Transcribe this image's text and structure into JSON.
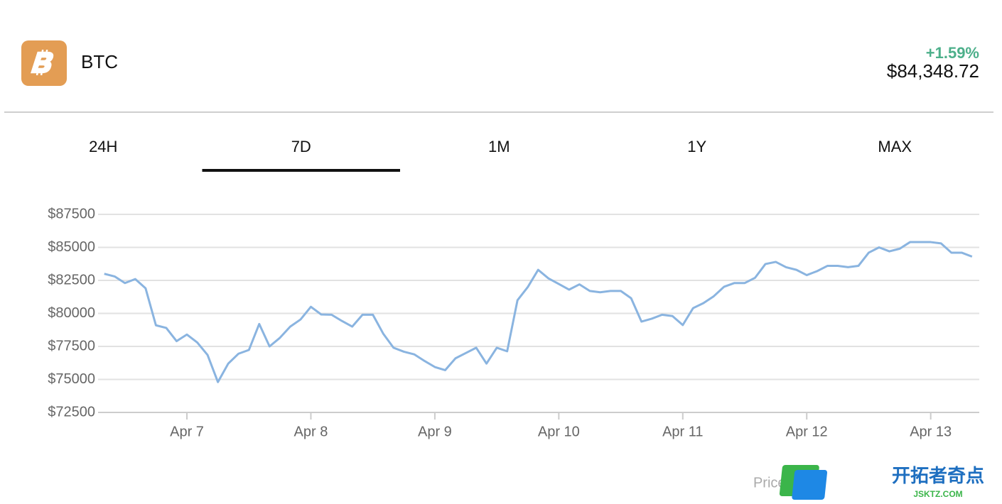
{
  "header": {
    "symbol": "BTC",
    "change": "+1.59%",
    "price": "$84,348.72"
  },
  "tabs": [
    "24H",
    "7D",
    "1M",
    "1Y",
    "MAX"
  ],
  "active_tab": 1,
  "chart_data": {
    "type": "line",
    "series": [
      {
        "color": "#8ab4e0",
        "values": [
          83000,
          82800,
          82300,
          82600,
          81900,
          79100,
          78900,
          77900,
          78400,
          77800,
          76850,
          74800,
          76200,
          76950,
          77230,
          79200,
          77500,
          78150,
          79000,
          79540,
          80500,
          79920,
          79900,
          79430,
          79000,
          79900,
          79900,
          78470,
          77400,
          77100,
          76900,
          76400,
          75940,
          75700,
          76600,
          77000,
          77400,
          76200,
          77400,
          77130,
          81000,
          82000,
          83300,
          82650,
          82230,
          81800,
          82200,
          81700,
          81600,
          81700,
          81700,
          81150,
          79380,
          79600,
          79900,
          79800,
          79120,
          80400,
          80780,
          81300,
          82020,
          82300,
          82300,
          82700,
          83740,
          83900,
          83500,
          83300,
          82900,
          83200,
          83600,
          83600,
          83500,
          83600,
          84600,
          85000,
          84700,
          84900,
          85400,
          85400,
          85400,
          85300,
          84600,
          84600,
          84300
        ]
      }
    ],
    "xlim": [
      -0.6,
      84.7
    ],
    "xticks": [
      {
        "value": 8,
        "label": "Apr 7"
      },
      {
        "value": 20,
        "label": "Apr 8"
      },
      {
        "value": 32,
        "label": "Apr 9"
      },
      {
        "value": 44,
        "label": "Apr 10"
      },
      {
        "value": 56,
        "label": "Apr 11"
      },
      {
        "value": 68,
        "label": "Apr 12"
      },
      {
        "value": 80,
        "label": "Apr 13"
      }
    ],
    "ylim": [
      72500,
      87500
    ],
    "yticks": [
      {
        "value": 72500,
        "label": "$72500"
      },
      {
        "value": 75000,
        "label": "$75000"
      },
      {
        "value": 77500,
        "label": "$77500"
      },
      {
        "value": 80000,
        "label": "$80000"
      },
      {
        "value": 82500,
        "label": "$82500"
      },
      {
        "value": 85000,
        "label": "$85000"
      },
      {
        "value": 87500,
        "label": "$87500"
      }
    ],
    "grid": true
  },
  "footer": {
    "source": "Price data",
    "watermark": "开拓者奇点",
    "watermark_url": "JSKTZ.COM"
  }
}
